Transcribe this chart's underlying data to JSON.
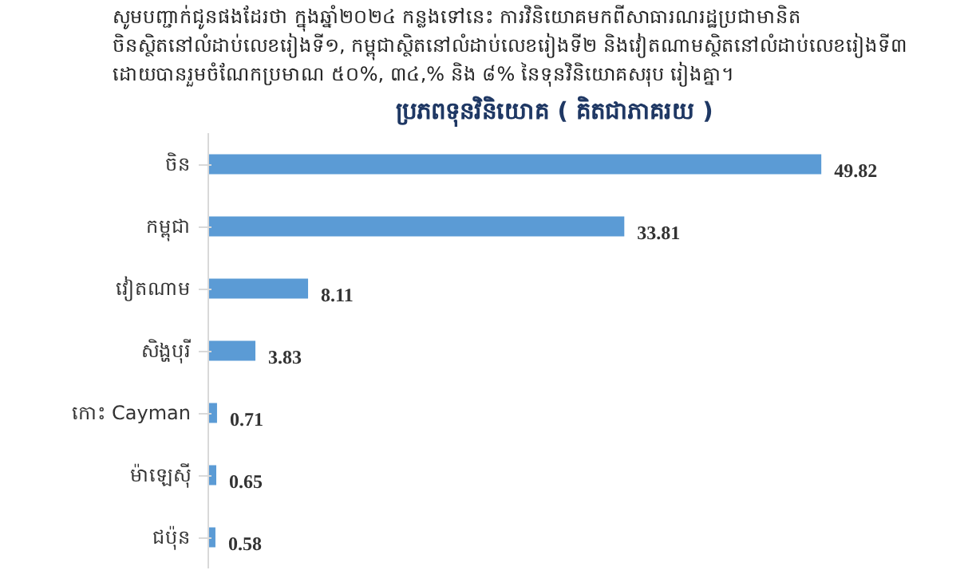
{
  "chart_data": {
    "type": "bar",
    "orientation": "horizontal",
    "title": "ប្រភពទុនវិនិយោគ ( គិតជាភាគរយ )",
    "annotations": [
      "សូមបញ្ជាក់ជូនផងដែរថា ក្នុងឆ្នាំ២០២៤ កន្លងទៅនេះ ការវិនិយោគមកពីសាធារណរដ្ឋប្រជាមានិត",
      "ចិនស្ថិតនៅលំដាប់លេខរៀងទី១, កម្ពុជាស្ថិតនៅលំដាប់លេខរៀងទី២ និងវៀតណាមស្ថិតនៅលំដាប់លេខរៀងទី៣",
      "ដោយបានរួមចំណែកប្រមាណ ៥០%, ៣៤,% និង ៨% នៃទុនវិនិយោគសរុប រៀងគ្នា។"
    ],
    "categories": [
      "ចិន",
      "កម្ពុជា",
      "វៀតណាម",
      "សិង្ហបុរី",
      "កោះ Cayman",
      "ម៉ាឡេស៊ី",
      "ជប៉ុន"
    ],
    "values": [
      49.82,
      33.81,
      8.11,
      3.83,
      0.71,
      0.65,
      0.58
    ],
    "color": "#5b9bd5",
    "data_labels": true,
    "grid": false
  }
}
